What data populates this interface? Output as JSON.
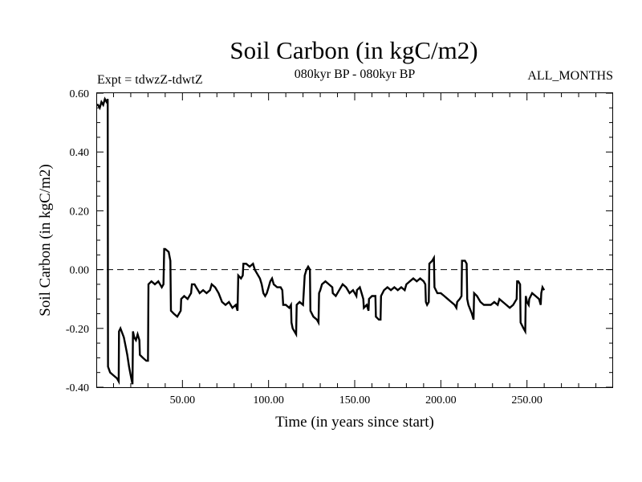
{
  "chart_data": {
    "type": "line",
    "title": "Soil Carbon (in kgC/m2)",
    "subtitle_left": "Expt = tdwzZ-tdwtZ",
    "subtitle_center": "080kyr BP - 080kyr BP",
    "subtitle_right": "ALL_MONTHS",
    "xlabel": "Time (in years since start)",
    "ylabel": "Soil Carbon (in kgC/m2)",
    "xlim": [
      0,
      300
    ],
    "ylim": [
      -0.4,
      0.6
    ],
    "xticks": [
      50,
      100,
      150,
      200,
      250
    ],
    "xtick_labels": [
      "50.00",
      "100.00",
      "150.00",
      "200.00",
      "250.00"
    ],
    "yticks": [
      -0.4,
      -0.2,
      0.0,
      0.2,
      0.4,
      0.6
    ],
    "ytick_labels": [
      "-0.40",
      "-0.20",
      "0.00",
      "0.20",
      "0.40",
      "0.60"
    ],
    "reference_line": {
      "y": 0.0,
      "style": "dashed"
    },
    "grid": false,
    "legend": "none",
    "series": [
      {
        "color": "#000000",
        "points": [
          [
            0,
            0.56
          ],
          [
            1,
            0.56
          ],
          [
            2,
            0.55
          ],
          [
            3,
            0.57
          ],
          [
            4,
            0.56
          ],
          [
            5,
            0.58
          ],
          [
            6,
            0.57
          ],
          [
            6.6,
            0.58
          ],
          [
            6.8,
            -0.33
          ],
          [
            8,
            -0.35
          ],
          [
            10,
            -0.36
          ],
          [
            12,
            -0.37
          ],
          [
            13,
            -0.38
          ],
          [
            13.2,
            -0.21
          ],
          [
            14,
            -0.2
          ],
          [
            16,
            -0.23
          ],
          [
            17,
            -0.26
          ],
          [
            18,
            -0.29
          ],
          [
            19,
            -0.33
          ],
          [
            20,
            -0.36
          ],
          [
            21,
            -0.39
          ],
          [
            21.3,
            -0.21
          ],
          [
            22,
            -0.23
          ],
          [
            23,
            -0.24
          ],
          [
            24,
            -0.22
          ],
          [
            25,
            -0.24
          ],
          [
            25.3,
            -0.29
          ],
          [
            27,
            -0.3
          ],
          [
            29,
            -0.31
          ],
          [
            30,
            -0.31
          ],
          [
            30.3,
            -0.05
          ],
          [
            32,
            -0.04
          ],
          [
            34,
            -0.05
          ],
          [
            36,
            -0.04
          ],
          [
            38,
            -0.06
          ],
          [
            39,
            -0.05
          ],
          [
            39.4,
            0.07
          ],
          [
            40,
            0.07
          ],
          [
            42,
            0.06
          ],
          [
            43,
            0.03
          ],
          [
            43.3,
            -0.14
          ],
          [
            45,
            -0.15
          ],
          [
            47,
            -0.16
          ],
          [
            49,
            -0.14
          ],
          [
            49.3,
            -0.1
          ],
          [
            51,
            -0.09
          ],
          [
            53,
            -0.1
          ],
          [
            55,
            -0.08
          ],
          [
            55.5,
            -0.05
          ],
          [
            57,
            -0.05
          ],
          [
            58,
            -0.06
          ],
          [
            59,
            -0.07
          ],
          [
            60,
            -0.08
          ],
          [
            62,
            -0.07
          ],
          [
            64,
            -0.08
          ],
          [
            66,
            -0.07
          ],
          [
            67,
            -0.05
          ],
          [
            69,
            -0.06
          ],
          [
            71,
            -0.08
          ],
          [
            73,
            -0.11
          ],
          [
            75,
            -0.12
          ],
          [
            77,
            -0.11
          ],
          [
            79,
            -0.13
          ],
          [
            81,
            -0.12
          ],
          [
            82,
            -0.14
          ],
          [
            82.4,
            -0.02
          ],
          [
            84,
            -0.03
          ],
          [
            85,
            -0.02
          ],
          [
            85.4,
            0.02
          ],
          [
            87,
            0.02
          ],
          [
            89,
            0.01
          ],
          [
            91,
            0.02
          ],
          [
            92,
            0.0
          ],
          [
            93,
            -0.01
          ],
          [
            95,
            -0.03
          ],
          [
            96,
            -0.05
          ],
          [
            97,
            -0.08
          ],
          [
            98,
            -0.09
          ],
          [
            99,
            -0.08
          ],
          [
            100,
            -0.06
          ],
          [
            101,
            -0.04
          ],
          [
            102,
            -0.03
          ],
          [
            103,
            -0.05
          ],
          [
            105,
            -0.06
          ],
          [
            107,
            -0.06
          ],
          [
            108,
            -0.07
          ],
          [
            108.5,
            -0.12
          ],
          [
            110,
            -0.12
          ],
          [
            112,
            -0.13
          ],
          [
            113,
            -0.12
          ],
          [
            113.3,
            -0.18
          ],
          [
            114,
            -0.2
          ],
          [
            115,
            -0.21
          ],
          [
            116,
            -0.22
          ],
          [
            116.3,
            -0.12
          ],
          [
            118,
            -0.11
          ],
          [
            120,
            -0.12
          ],
          [
            121,
            -0.02
          ],
          [
            122,
            0.0
          ],
          [
            123,
            0.01
          ],
          [
            124,
            0.0
          ],
          [
            124.3,
            -0.14
          ],
          [
            126,
            -0.16
          ],
          [
            128,
            -0.17
          ],
          [
            129,
            -0.18
          ],
          [
            129.3,
            -0.08
          ],
          [
            130,
            -0.07
          ],
          [
            131,
            -0.05
          ],
          [
            133,
            -0.04
          ],
          [
            135,
            -0.05
          ],
          [
            137,
            -0.06
          ],
          [
            137.3,
            -0.08
          ],
          [
            139,
            -0.09
          ],
          [
            141,
            -0.07
          ],
          [
            143,
            -0.05
          ],
          [
            145,
            -0.06
          ],
          [
            147,
            -0.08
          ],
          [
            149,
            -0.07
          ],
          [
            151,
            -0.09
          ],
          [
            151.3,
            -0.07
          ],
          [
            153,
            -0.06
          ],
          [
            154,
            -0.08
          ],
          [
            155,
            -0.1
          ],
          [
            155.3,
            -0.13
          ],
          [
            157,
            -0.12
          ],
          [
            158,
            -0.14
          ],
          [
            158.3,
            -0.1
          ],
          [
            160,
            -0.09
          ],
          [
            162,
            -0.09
          ],
          [
            162.3,
            -0.16
          ],
          [
            164,
            -0.17
          ],
          [
            165,
            -0.17
          ],
          [
            165.3,
            -0.09
          ],
          [
            167,
            -0.07
          ],
          [
            169,
            -0.06
          ],
          [
            171,
            -0.07
          ],
          [
            173,
            -0.06
          ],
          [
            175,
            -0.07
          ],
          [
            177,
            -0.06
          ],
          [
            179,
            -0.07
          ],
          [
            180,
            -0.05
          ],
          [
            182,
            -0.04
          ],
          [
            184,
            -0.03
          ],
          [
            186,
            -0.04
          ],
          [
            188,
            -0.03
          ],
          [
            190,
            -0.04
          ],
          [
            191,
            -0.05
          ],
          [
            191.3,
            -0.11
          ],
          [
            192,
            -0.12
          ],
          [
            193,
            -0.11
          ],
          [
            193.3,
            0.02
          ],
          [
            195,
            0.03
          ],
          [
            196,
            0.04
          ],
          [
            196.3,
            -0.06
          ],
          [
            198,
            -0.08
          ],
          [
            200,
            -0.08
          ],
          [
            202,
            -0.09
          ],
          [
            204,
            -0.1
          ],
          [
            206,
            -0.11
          ],
          [
            208,
            -0.12
          ],
          [
            209,
            -0.13
          ],
          [
            209.5,
            -0.11
          ],
          [
            211,
            -0.1
          ],
          [
            212,
            -0.09
          ],
          [
            212.3,
            0.03
          ],
          [
            214,
            0.03
          ],
          [
            215,
            0.02
          ],
          [
            215.3,
            -0.1
          ],
          [
            216,
            -0.12
          ],
          [
            218,
            -0.15
          ],
          [
            219,
            -0.17
          ],
          [
            219.3,
            -0.08
          ],
          [
            221,
            -0.09
          ],
          [
            223,
            -0.11
          ],
          [
            225,
            -0.12
          ],
          [
            227,
            -0.12
          ],
          [
            229,
            -0.12
          ],
          [
            231,
            -0.11
          ],
          [
            233,
            -0.12
          ],
          [
            234,
            -0.1
          ],
          [
            236,
            -0.11
          ],
          [
            238,
            -0.12
          ],
          [
            240,
            -0.13
          ],
          [
            242,
            -0.12
          ],
          [
            244,
            -0.1
          ],
          [
            244.3,
            -0.04
          ],
          [
            245,
            -0.04
          ],
          [
            246,
            -0.05
          ],
          [
            246.3,
            -0.18
          ],
          [
            248,
            -0.2
          ],
          [
            249,
            -0.21
          ],
          [
            249.3,
            -0.09
          ],
          [
            250,
            -0.11
          ],
          [
            251,
            -0.12
          ],
          [
            251.3,
            -0.1
          ],
          [
            253,
            -0.08
          ],
          [
            255,
            -0.09
          ],
          [
            257,
            -0.1
          ],
          [
            258,
            -0.12
          ],
          [
            258.3,
            -0.08
          ],
          [
            259,
            -0.06
          ],
          [
            260,
            -0.07
          ]
        ]
      }
    ]
  }
}
